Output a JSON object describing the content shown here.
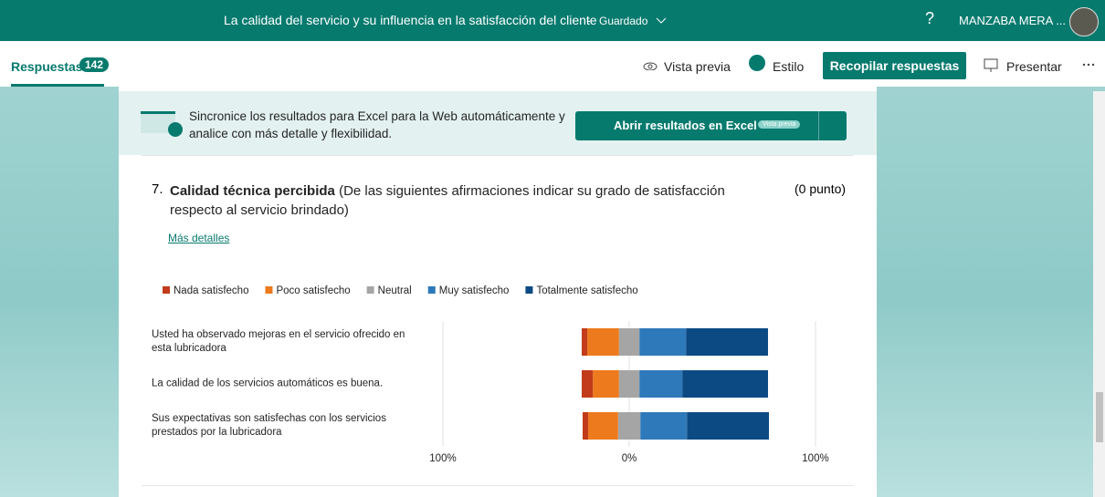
{
  "header": {
    "title": "La calidad del servicio y su influencia en la satisfacción del cliente",
    "separator": "-",
    "status": "Guardado",
    "help": "?",
    "user": "MANZABA MERA ..."
  },
  "toolbar": {
    "responses_label": "Respuestas",
    "responses_count": 142,
    "preview": "Vista previa",
    "style": "Estilo",
    "collect": "Recopilar respuestas",
    "present": "Presentar"
  },
  "banner": {
    "text": "Sincronice los resultados para Excel para la Web automáticamente y analice con más detalle y flexibilidad.",
    "button": "Abrir resultados en Excel",
    "badge": "Vista previa"
  },
  "question": {
    "number": "7.",
    "title": "Calidad técnica percibida",
    "description": "(De  las siguientes afirmaciones indicar su grado de satisfacción respecto al servicio brindado)",
    "points": "(0 punto)",
    "details_link": "Más detalles"
  },
  "chart_data": {
    "type": "bar",
    "orientation": "horizontal",
    "stacking": "diverging",
    "categories": [
      "Usted ha observado mejoras en el servicio ofrecido en esta lubricadora",
      "La calidad de los servicios automáticos es buena.",
      "Sus expectativas son satisfechas con los servicios prestados por la lubricadora"
    ],
    "series": [
      {
        "name": "Nada satisfecho",
        "color": "#c23b1a",
        "side": "left",
        "values": [
          3,
          6,
          3
        ]
      },
      {
        "name": "Poco satisfecho",
        "color": "#ed7a1c",
        "side": "left",
        "values": [
          17,
          14,
          16
        ]
      },
      {
        "name": "Neutral",
        "color": "#a5a5a5",
        "side": "center",
        "values": [
          11,
          11,
          12
        ]
      },
      {
        "name": "Muy satisfecho",
        "color": "#2e79b9",
        "side": "right",
        "values": [
          25,
          23,
          25
        ]
      },
      {
        "name": "Totalmente satisfecho",
        "color": "#0c4a83",
        "side": "right",
        "values": [
          44,
          46,
          44
        ]
      }
    ],
    "xlim": [
      -100,
      100
    ],
    "xticks": [
      {
        "value": -100,
        "label": "100%"
      },
      {
        "value": 0,
        "label": "0%"
      },
      {
        "value": 100,
        "label": "100%"
      }
    ]
  }
}
